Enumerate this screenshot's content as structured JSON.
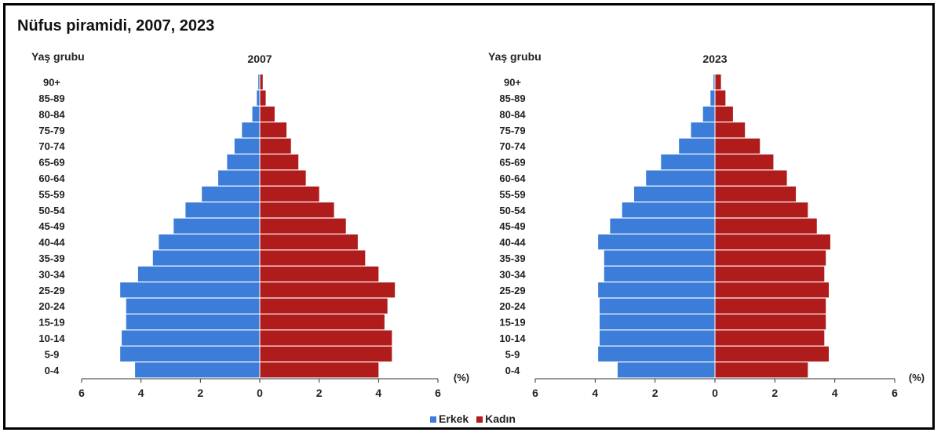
{
  "title": "Nüfus piramidi, 2007, 2023",
  "colors": {
    "male": "#3b7dd8",
    "female": "#b01c1c"
  },
  "legend": {
    "male": "Erkek",
    "female": "Kadın"
  },
  "chart_data": [
    {
      "type": "bar",
      "subtitle": "2007",
      "ylabel": "Yaş grubu",
      "xlabel": "(%)",
      "xlim": [
        -6,
        6
      ],
      "xticks": [
        6,
        4,
        2,
        0,
        2,
        4,
        6
      ],
      "categories": [
        "90+",
        "85-89",
        "80-84",
        "75-79",
        "70-74",
        "65-69",
        "60-64",
        "55-59",
        "50-54",
        "45-49",
        "40-44",
        "35-39",
        "30-34",
        "25-29",
        "20-24",
        "15-19",
        "10-14",
        "5-9",
        "0-4"
      ],
      "series": [
        {
          "name": "Erkek",
          "values": [
            0.05,
            0.1,
            0.25,
            0.6,
            0.85,
            1.1,
            1.4,
            1.95,
            2.5,
            2.9,
            3.4,
            3.6,
            4.1,
            4.7,
            4.5,
            4.5,
            4.65,
            4.7,
            4.2
          ]
        },
        {
          "name": "Kadın",
          "values": [
            0.1,
            0.2,
            0.5,
            0.9,
            1.05,
            1.3,
            1.55,
            2.0,
            2.5,
            2.9,
            3.3,
            3.55,
            4.0,
            4.55,
            4.3,
            4.2,
            4.45,
            4.45,
            4.0
          ]
        }
      ]
    },
    {
      "type": "bar",
      "subtitle": "2023",
      "ylabel": "Yaş grubu",
      "xlabel": "(%)",
      "xlim": [
        -6,
        6
      ],
      "xticks": [
        6,
        4,
        2,
        0,
        2,
        4,
        6
      ],
      "categories": [
        "90+",
        "85-89",
        "80-84",
        "75-79",
        "70-74",
        "65-69",
        "60-64",
        "55-59",
        "50-54",
        "45-49",
        "40-44",
        "35-39",
        "30-34",
        "25-29",
        "20-24",
        "15-19",
        "10-14",
        "5-9",
        "0-4"
      ],
      "series": [
        {
          "name": "Erkek",
          "values": [
            0.05,
            0.15,
            0.4,
            0.8,
            1.2,
            1.8,
            2.3,
            2.7,
            3.1,
            3.5,
            3.9,
            3.7,
            3.7,
            3.9,
            3.85,
            3.85,
            3.85,
            3.9,
            3.25
          ]
        },
        {
          "name": "Kadın",
          "values": [
            0.2,
            0.35,
            0.6,
            1.0,
            1.5,
            1.95,
            2.4,
            2.7,
            3.1,
            3.4,
            3.85,
            3.7,
            3.65,
            3.8,
            3.7,
            3.7,
            3.65,
            3.8,
            3.1
          ]
        }
      ]
    }
  ]
}
